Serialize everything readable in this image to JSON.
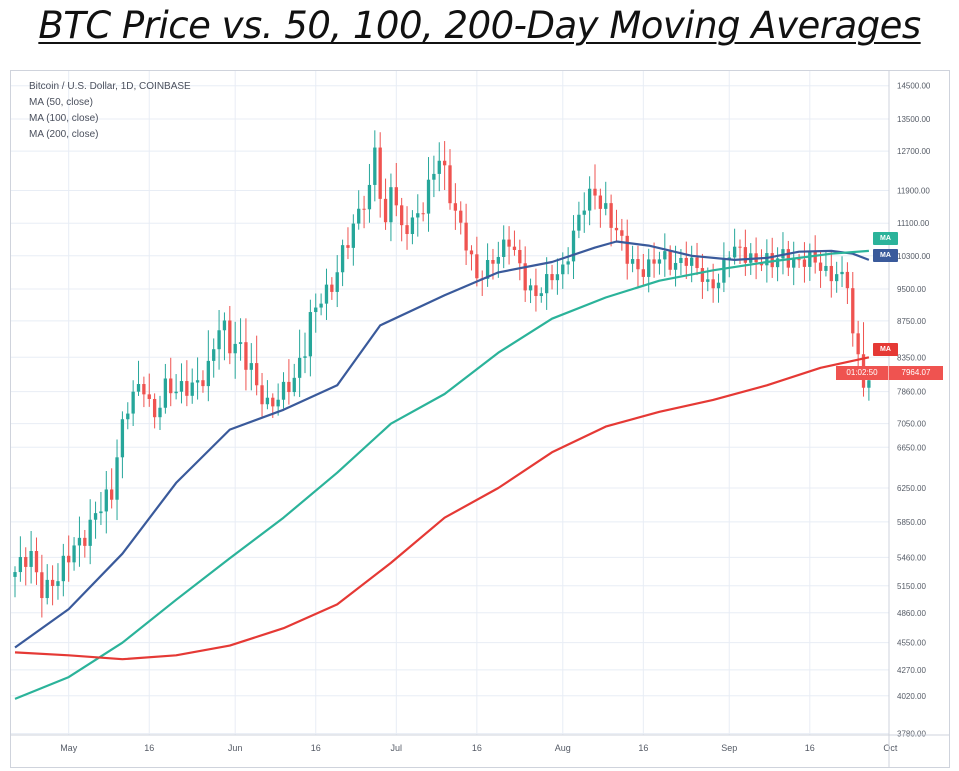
{
  "header": {
    "title": "BTC Price vs. 50, 100, 200-Day Moving Averages"
  },
  "legend": {
    "symbol": "Bitcoin / U.S. Dollar, 1D, COINBASE",
    "ma50": "MA (50, close)",
    "ma100": "MA (100, close)",
    "ma200": "MA (200, close)"
  },
  "tags": {
    "ma_label": "MA",
    "countdown": "01:02:50",
    "last_price": "7964.07"
  },
  "colors": {
    "up": "#26a69a",
    "down": "#ef5350",
    "ma50": "#3a5a9b",
    "ma100": "#2bb39a",
    "ma200": "#e53935",
    "grid": "#e8edf5"
  },
  "chart_data": {
    "type": "candlestick+line",
    "title": "BTC Price vs. 50, 100, 200-Day Moving Averages",
    "ylim": [
      3780,
      14700
    ],
    "y_ticks": [
      3780,
      4020,
      4270,
      4550,
      4860,
      5150,
      5460,
      5850,
      6250,
      6650,
      7050,
      7860,
      8350,
      8750,
      9500,
      10300,
      11100,
      11900,
      12700,
      13500,
      14500
    ],
    "y_tick_labels": [
      "3780.00",
      "4020.00",
      "4270.00",
      "4550.00",
      "4860.00",
      "5150.00",
      "5460.00",
      "5850.00",
      "6250.00",
      "6650.00",
      "7050.00",
      "7860.00",
      "8350.00",
      "8750.00",
      "9500.00",
      "10300.00",
      "11100.00",
      "11900.00",
      "12700.00",
      "13500.00",
      "14500.00"
    ],
    "x_start": "2019-04-21",
    "x_end_day": 162,
    "x_ticks": [
      {
        "day": 10,
        "label": "May"
      },
      {
        "day": 25,
        "label": "16"
      },
      {
        "day": 41,
        "label": "Jun"
      },
      {
        "day": 56,
        "label": "16"
      },
      {
        "day": 71,
        "label": "Jul"
      },
      {
        "day": 86,
        "label": "16"
      },
      {
        "day": 102,
        "label": "Aug"
      },
      {
        "day": 117,
        "label": "16"
      },
      {
        "day": 133,
        "label": "Sep"
      },
      {
        "day": 148,
        "label": "16"
      },
      {
        "day": 163,
        "label": "Oct"
      }
    ],
    "close_anchors": [
      [
        0,
        5300
      ],
      [
        3,
        5450
      ],
      [
        5,
        5150
      ],
      [
        8,
        5200
      ],
      [
        11,
        5600
      ],
      [
        14,
        5800
      ],
      [
        18,
        6200
      ],
      [
        20,
        7100
      ],
      [
        22,
        7750
      ],
      [
        24,
        7900
      ],
      [
        26,
        7300
      ],
      [
        28,
        7900
      ],
      [
        30,
        7800
      ],
      [
        33,
        8000
      ],
      [
        36,
        8100
      ],
      [
        38,
        8700
      ],
      [
        41,
        8550
      ],
      [
        44,
        8100
      ],
      [
        46,
        7700
      ],
      [
        48,
        7600
      ],
      [
        50,
        7800
      ],
      [
        52,
        8000
      ],
      [
        55,
        8900
      ],
      [
        59,
        9500
      ],
      [
        61,
        10500
      ],
      [
        63,
        11000
      ],
      [
        66,
        11800
      ],
      [
        67,
        12900
      ],
      [
        69,
        11000
      ],
      [
        70,
        12100
      ],
      [
        72,
        10800
      ],
      [
        74,
        11200
      ],
      [
        76,
        11600
      ],
      [
        79,
        12500
      ],
      [
        82,
        11500
      ],
      [
        84,
        10600
      ],
      [
        86,
        9650
      ],
      [
        89,
        10300
      ],
      [
        92,
        10600
      ],
      [
        95,
        9700
      ],
      [
        97,
        9400
      ],
      [
        99,
        9600
      ],
      [
        102,
        10000
      ],
      [
        104,
        10900
      ],
      [
        106,
        11500
      ],
      [
        108,
        11800
      ],
      [
        110,
        11500
      ],
      [
        112,
        10900
      ],
      [
        114,
        10200
      ],
      [
        116,
        10000
      ],
      [
        118,
        10100
      ],
      [
        120,
        10200
      ],
      [
        122,
        10100
      ],
      [
        125,
        10300
      ],
      [
        127,
        9900
      ],
      [
        129,
        9550
      ],
      [
        131,
        9800
      ],
      [
        133,
        10400
      ],
      [
        136,
        10300
      ],
      [
        139,
        10250
      ],
      [
        141,
        10050
      ],
      [
        143,
        10300
      ],
      [
        146,
        10200
      ],
      [
        149,
        10100
      ],
      [
        151,
        9950
      ],
      [
        153,
        9900
      ],
      [
        155,
        9600
      ],
      [
        156,
        8450
      ],
      [
        157,
        8350
      ],
      [
        158,
        8100
      ],
      [
        159,
        7964
      ]
    ],
    "series": [
      {
        "name": "MA (50, close)",
        "color": "#3a5a9b",
        "points": [
          [
            0,
            4500
          ],
          [
            10,
            4900
          ],
          [
            20,
            5500
          ],
          [
            30,
            6300
          ],
          [
            40,
            6950
          ],
          [
            50,
            7400
          ],
          [
            60,
            7950
          ],
          [
            68,
            8700
          ],
          [
            80,
            9350
          ],
          [
            90,
            9900
          ],
          [
            100,
            10150
          ],
          [
            108,
            10500
          ],
          [
            112,
            10650
          ],
          [
            118,
            10550
          ],
          [
            126,
            10300
          ],
          [
            134,
            10200
          ],
          [
            140,
            10250
          ],
          [
            146,
            10400
          ],
          [
            152,
            10420
          ],
          [
            156,
            10350
          ],
          [
            159,
            10200
          ]
        ]
      },
      {
        "name": "MA (100, close)",
        "color": "#2bb39a",
        "points": [
          [
            0,
            4000
          ],
          [
            10,
            4200
          ],
          [
            20,
            4550
          ],
          [
            30,
            5000
          ],
          [
            40,
            5450
          ],
          [
            50,
            5900
          ],
          [
            60,
            6400
          ],
          [
            70,
            7050
          ],
          [
            80,
            7800
          ],
          [
            90,
            8400
          ],
          [
            100,
            8800
          ],
          [
            110,
            9300
          ],
          [
            120,
            9700
          ],
          [
            130,
            9950
          ],
          [
            140,
            10150
          ],
          [
            146,
            10250
          ],
          [
            152,
            10350
          ],
          [
            159,
            10420
          ]
        ]
      },
      {
        "name": "MA (200, close)",
        "color": "#e53935",
        "points": [
          [
            0,
            4450
          ],
          [
            10,
            4420
          ],
          [
            20,
            4380
          ],
          [
            30,
            4420
          ],
          [
            40,
            4520
          ],
          [
            50,
            4700
          ],
          [
            60,
            4950
          ],
          [
            70,
            5400
          ],
          [
            80,
            5900
          ],
          [
            90,
            6250
          ],
          [
            100,
            6600
          ],
          [
            110,
            7000
          ],
          [
            120,
            7350
          ],
          [
            130,
            7650
          ],
          [
            140,
            7950
          ],
          [
            150,
            8200
          ],
          [
            159,
            8350
          ]
        ]
      }
    ]
  }
}
